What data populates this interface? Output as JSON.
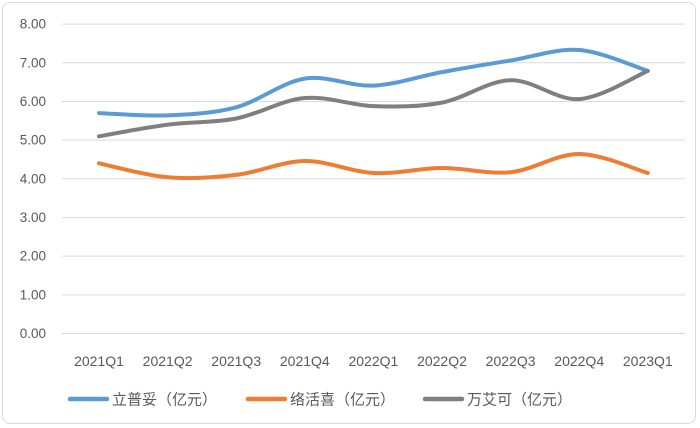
{
  "chart_data": {
    "type": "line",
    "smooth": true,
    "title": "",
    "xlabel": "",
    "ylabel": "",
    "categories": [
      "2021Q1",
      "2021Q2",
      "2021Q3",
      "2021Q4",
      "2022Q1",
      "2022Q2",
      "2022Q3",
      "2022Q4",
      "2023Q1"
    ],
    "series": [
      {
        "key": "lipitor",
        "name": "立普妥（亿元）",
        "color": "#5B9BD5",
        "values": [
          5.7,
          5.64,
          5.85,
          6.59,
          6.41,
          6.76,
          7.06,
          7.33,
          6.79
        ]
      },
      {
        "key": "norvasc",
        "name": "络活喜（亿元）",
        "color": "#ED7D31",
        "values": [
          4.4,
          4.04,
          4.1,
          4.46,
          4.15,
          4.28,
          4.17,
          4.64,
          4.15
        ]
      },
      {
        "key": "viagra",
        "name": "万艾可（亿元）",
        "color": "#7F7F7F",
        "values": [
          5.1,
          5.4,
          5.56,
          6.09,
          5.88,
          5.97,
          6.55,
          6.06,
          6.79
        ]
      }
    ],
    "ylim": [
      0,
      8
    ],
    "y_tick_step": 1,
    "y_tick_labels": [
      "8.00",
      "7.00",
      "6.00",
      "5.00",
      "4.00",
      "3.00",
      "2.00",
      "1.00",
      "0.00"
    ],
    "grid": "horizontal",
    "gridline_color": "#D9D9D9",
    "axis_text_color": "#595959",
    "background_color": "#FFFFFF",
    "border_color": "#D9D9D9",
    "legend_position": "bottom",
    "line_width": 4
  }
}
